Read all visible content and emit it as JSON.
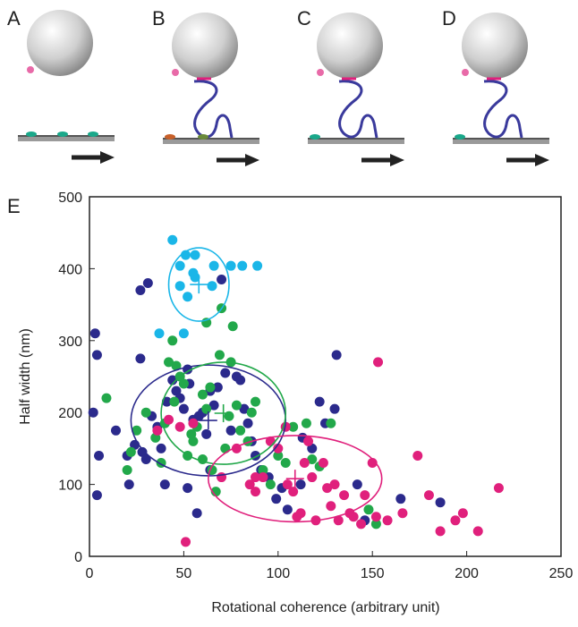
{
  "panels": {
    "labels": [
      "A",
      "B",
      "C",
      "D"
    ]
  },
  "chart_data": {
    "type": "scatter",
    "panel_label": "E",
    "x_label": "Rotational coherence (arbitrary unit)",
    "y_label": "Half width (nm)",
    "xlim": [
      0,
      250
    ],
    "ylim": [
      0,
      500
    ],
    "xticks": [
      0,
      50,
      100,
      150,
      200,
      250
    ],
    "yticks": [
      0,
      100,
      200,
      300,
      400,
      500
    ],
    "series": [
      {
        "color": "#1ab6e8",
        "center": [
          58,
          378
        ],
        "radii": [
          16,
          51
        ],
        "x": [
          44,
          51,
          56,
          48,
          66,
          75,
          89,
          81,
          56,
          48,
          65,
          52,
          37,
          50,
          55
        ],
        "y": [
          440,
          419,
          419,
          404,
          404,
          404,
          404,
          404,
          388,
          376,
          376,
          361,
          310,
          310,
          394
        ]
      },
      {
        "color": "#2b2a8c",
        "center": [
          63,
          189
        ],
        "radii": [
          41,
          77
        ],
        "x": [
          3,
          4,
          2,
          5,
          4,
          14,
          20,
          21,
          27,
          27,
          31,
          24,
          28,
          30,
          33,
          36,
          38,
          41,
          44,
          46,
          48,
          50,
          52,
          53,
          55,
          58,
          60,
          62,
          64,
          66,
          68,
          70,
          72,
          75,
          78,
          80,
          82,
          84,
          86,
          88,
          91,
          95,
          102,
          105,
          112,
          118,
          122,
          125,
          130,
          131,
          142,
          146,
          165,
          186,
          40,
          52,
          57,
          64,
          99,
          113
        ],
        "y": [
          310,
          280,
          200,
          140,
          85,
          175,
          140,
          100,
          275,
          370,
          380,
          155,
          145,
          135,
          195,
          180,
          150,
          215,
          245,
          230,
          220,
          205,
          260,
          240,
          190,
          195,
          200,
          170,
          230,
          210,
          235,
          385,
          255,
          175,
          250,
          245,
          205,
          185,
          160,
          140,
          120,
          110,
          95,
          65,
          100,
          150,
          215,
          185,
          205,
          280,
          100,
          50,
          80,
          75,
          100,
          95,
          60,
          120,
          80,
          165
        ]
      },
      {
        "color": "#22a84a",
        "center": [
          71,
          199
        ],
        "radii": [
          33,
          71
        ],
        "x": [
          9,
          20,
          22,
          25,
          30,
          35,
          38,
          40,
          42,
          44,
          46,
          48,
          50,
          52,
          54,
          55,
          57,
          60,
          62,
          64,
          67,
          69,
          72,
          74,
          76,
          78,
          80,
          84,
          86,
          88,
          92,
          96,
          100,
          104,
          108,
          115,
          118,
          122,
          128,
          148,
          152,
          60,
          65,
          45,
          70,
          62,
          75
        ],
        "y": [
          220,
          120,
          145,
          175,
          200,
          165,
          130,
          185,
          270,
          300,
          265,
          250,
          240,
          140,
          170,
          160,
          180,
          135,
          205,
          235,
          90,
          280,
          150,
          195,
          320,
          210,
          175,
          160,
          200,
          215,
          120,
          100,
          140,
          130,
          180,
          185,
          135,
          125,
          185,
          65,
          45,
          225,
          120,
          215,
          345,
          325,
          270
        ]
      },
      {
        "color": "#e0207c",
        "center": [
          109,
          108
        ],
        "radii": [
          46,
          60
        ],
        "x": [
          51,
          36,
          42,
          48,
          55,
          70,
          78,
          85,
          88,
          92,
          96,
          100,
          104,
          108,
          112,
          114,
          116,
          120,
          124,
          126,
          128,
          130,
          132,
          135,
          138,
          140,
          144,
          146,
          150,
          152,
          153,
          158,
          166,
          174,
          180,
          186,
          194,
          198,
          206,
          217,
          118,
          110,
          105,
          88
        ],
        "y": [
          20,
          175,
          190,
          180,
          185,
          110,
          150,
          100,
          90,
          110,
          160,
          150,
          180,
          90,
          60,
          130,
          160,
          50,
          130,
          95,
          70,
          100,
          50,
          85,
          60,
          55,
          45,
          85,
          130,
          55,
          270,
          50,
          60,
          140,
          85,
          35,
          50,
          60,
          35,
          95,
          110,
          55,
          100,
          110
        ]
      }
    ]
  }
}
